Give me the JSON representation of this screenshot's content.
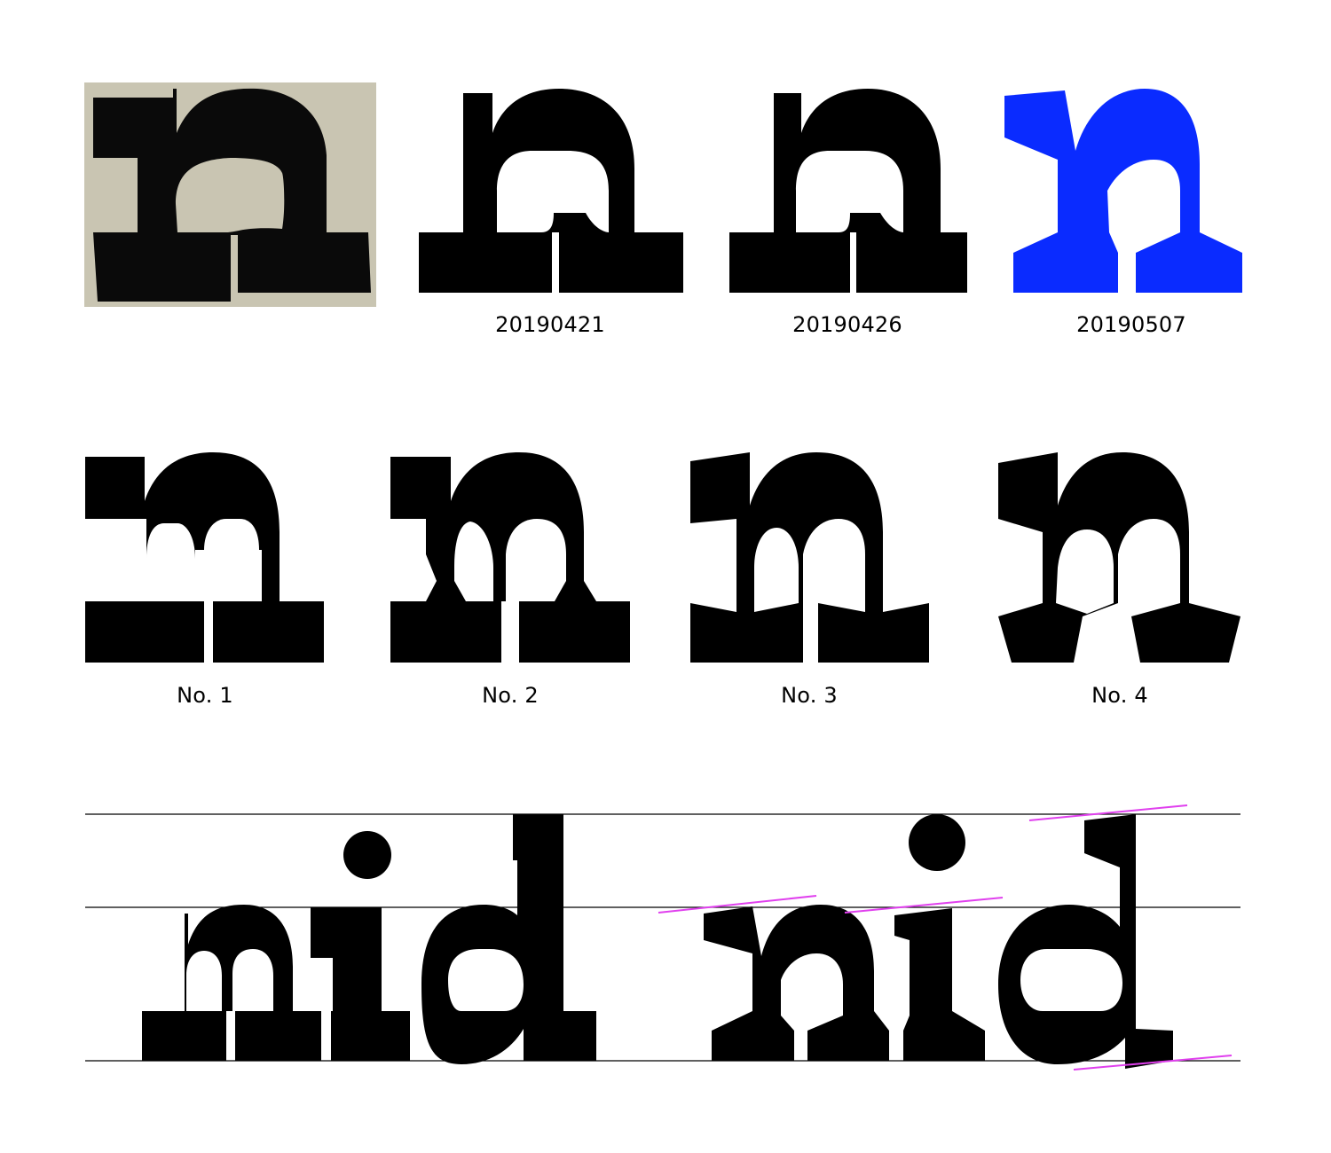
{
  "colors": {
    "ink": "#000000",
    "accent_blue": "#0a2bff",
    "scan_paper": "#c9c5b2",
    "guide_line": "#000000",
    "guide_slant": "#e040ee"
  },
  "row1": {
    "captions": [
      "20190421",
      "20190426",
      "20190507"
    ]
  },
  "row2": {
    "captions": [
      "No. 1",
      "No. 2",
      "No. 3",
      "No. 4"
    ]
  },
  "row3": {
    "words": [
      "nid",
      "nid"
    ]
  }
}
